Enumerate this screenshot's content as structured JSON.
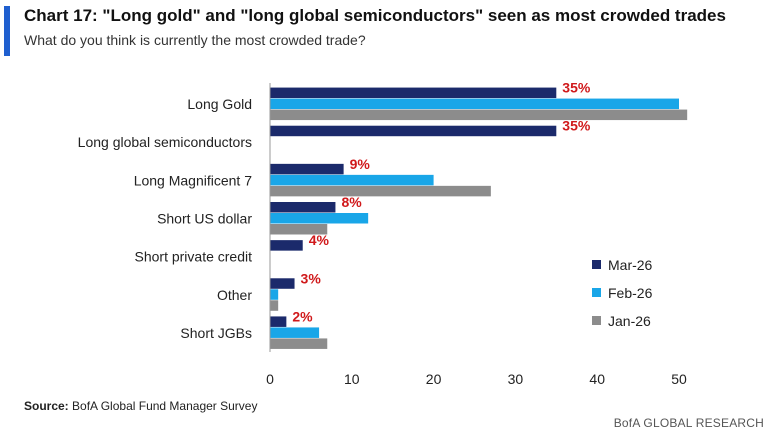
{
  "header": {
    "title": "Chart 17: \"Long gold\" and \"long global semiconductors\" seen as most crowded trades",
    "subtitle": "What do you think is currently the most crowded trade?"
  },
  "footer": {
    "source_label": "Source:",
    "source_text": "BofA Global Fund Manager Survey",
    "brand": "BofA GLOBAL RESEARCH"
  },
  "colors": {
    "mar": "#1b2a6b",
    "feb": "#19a6e8",
    "jan": "#8c8c8c",
    "label_red": "#d0191b",
    "accent": "#1f5fcf"
  },
  "chart_data": {
    "type": "bar",
    "orientation": "horizontal",
    "categories": [
      "Long Gold",
      "Long global semiconductors",
      "Long Magnificent 7",
      "Short US dollar",
      "Short private credit",
      "Other",
      "Short JGBs"
    ],
    "series": [
      {
        "name": "Mar-26",
        "values": [
          35,
          35,
          9,
          8,
          4,
          3,
          2
        ]
      },
      {
        "name": "Feb-26",
        "values": [
          50,
          null,
          20,
          12,
          null,
          1,
          6
        ]
      },
      {
        "name": "Jan-26",
        "values": [
          51,
          null,
          27,
          7,
          null,
          1,
          7
        ]
      }
    ],
    "data_labels": [
      "35%",
      "35%",
      "9%",
      "8%",
      "4%",
      "3%",
      "2%"
    ],
    "xlim": [
      0,
      50
    ],
    "xticks": [
      "0",
      "10",
      "20",
      "30",
      "40",
      "50"
    ],
    "legend": [
      "Mar-26",
      "Feb-26",
      "Jan-26"
    ],
    "legend_position": "right",
    "grid": false
  }
}
